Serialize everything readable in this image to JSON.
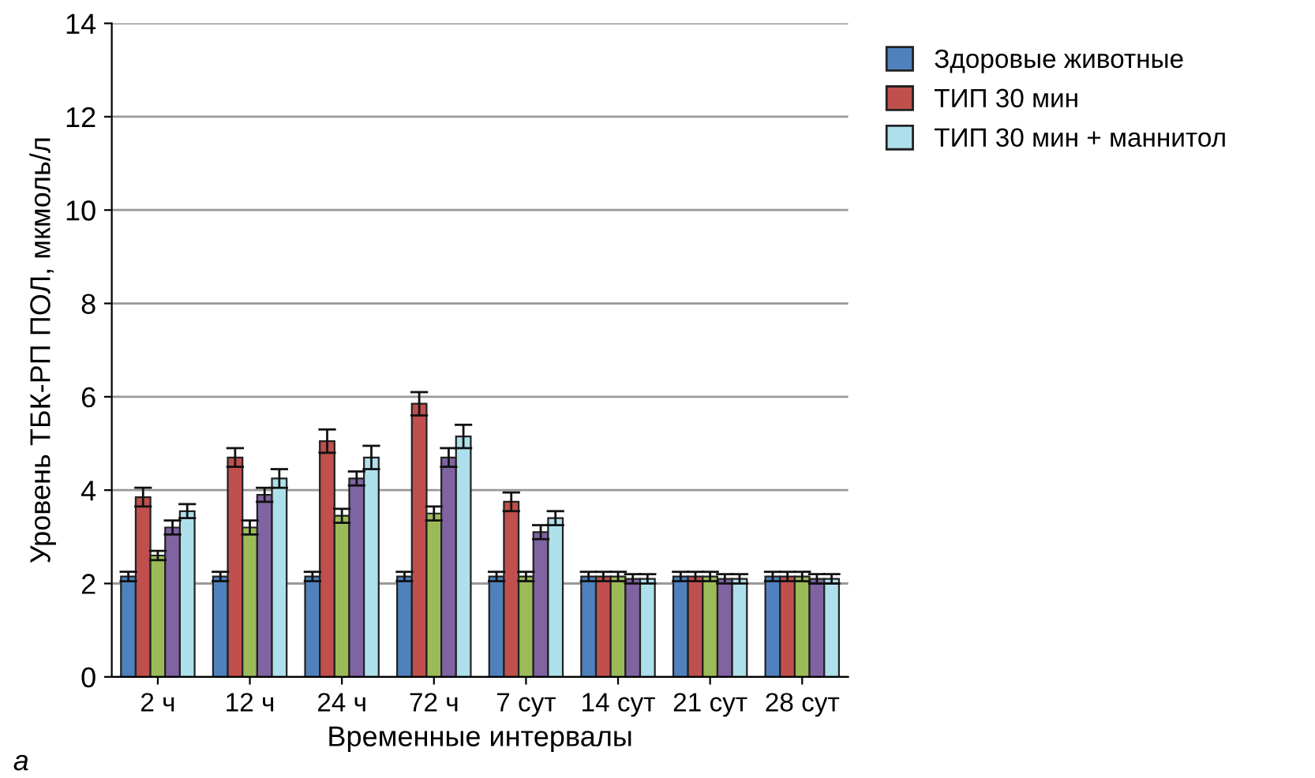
{
  "chart_data": {
    "type": "bar",
    "xlabel": "Временные интервалы",
    "ylabel": "Уровень ТБК-РП ПОЛ, мкмоль/л",
    "categories": [
      "2 ч",
      "12 ч",
      "24 ч",
      "72 ч",
      "7 сут",
      "14 сут",
      "21 сут",
      "28 сут"
    ],
    "series": [
      {
        "name": "Здоровые животные",
        "color": "#4f81bd",
        "values": [
          2.15,
          2.15,
          2.15,
          2.15,
          2.15,
          2.15,
          2.15,
          2.15
        ],
        "errors": [
          0.1,
          0.1,
          0.1,
          0.1,
          0.1,
          0.1,
          0.1,
          0.1
        ]
      },
      {
        "name": "ТИП 30 мин",
        "color": "#c0504d",
        "values": [
          3.85,
          4.7,
          5.05,
          5.85,
          3.75,
          2.15,
          2.15,
          2.15
        ],
        "errors": [
          0.2,
          0.2,
          0.25,
          0.25,
          0.2,
          0.1,
          0.1,
          0.1
        ]
      },
      {
        "color": "#9bbb59",
        "values": [
          2.6,
          3.2,
          3.45,
          3.5,
          2.15,
          2.15,
          2.15,
          2.15
        ],
        "errors": [
          0.1,
          0.15,
          0.15,
          0.15,
          0.1,
          0.1,
          0.1,
          0.1
        ]
      },
      {
        "color": "#8064a2",
        "values": [
          3.2,
          3.9,
          4.25,
          4.7,
          3.1,
          2.1,
          2.1,
          2.1
        ],
        "errors": [
          0.15,
          0.15,
          0.15,
          0.2,
          0.15,
          0.1,
          0.1,
          0.1
        ]
      },
      {
        "name": "ТИП 30 мин + маннитол",
        "color": "#aee0ec",
        "values": [
          3.55,
          4.25,
          4.7,
          5.15,
          3.4,
          2.1,
          2.1,
          2.1
        ],
        "errors": [
          0.15,
          0.2,
          0.25,
          0.25,
          0.15,
          0.1,
          0.1,
          0.1
        ]
      }
    ],
    "ylim": [
      0,
      14
    ],
    "yticks": [
      0,
      2,
      4,
      6,
      8,
      10,
      12,
      14
    ],
    "grid": "y",
    "legend": "top right",
    "annotations": [
      "а"
    ]
  }
}
